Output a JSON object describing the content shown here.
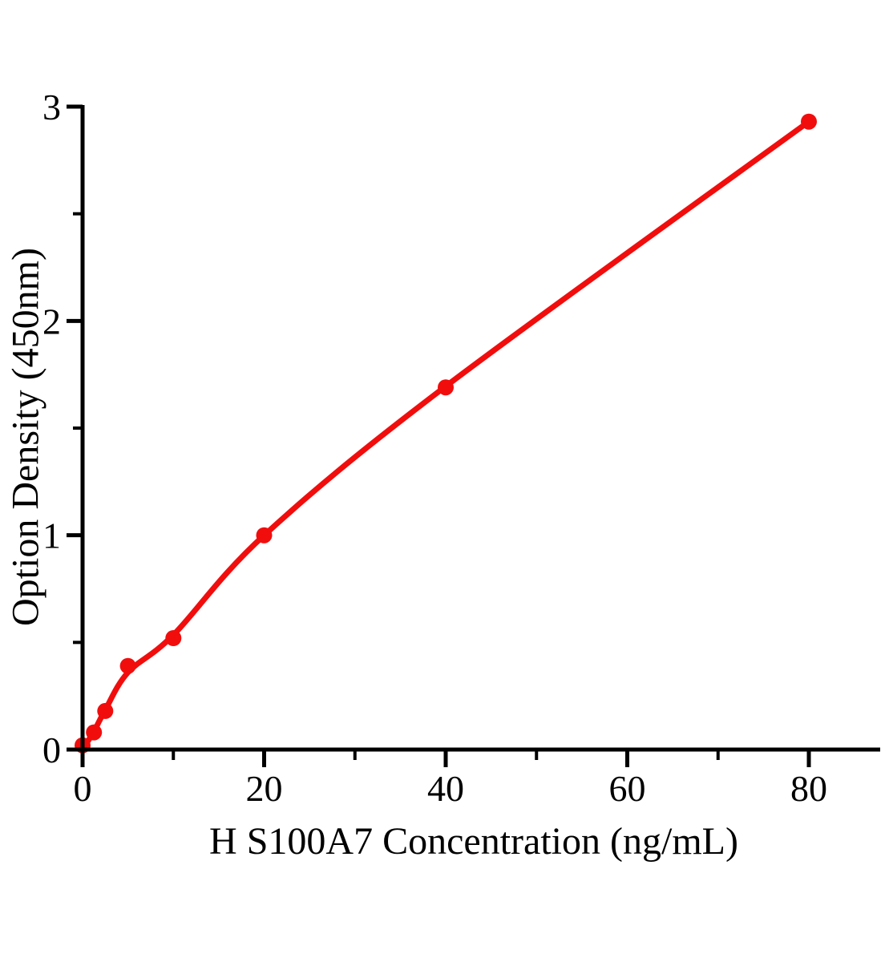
{
  "figure": {
    "background_color": "#ffffff",
    "axis_color": "#000000",
    "text_color": "#000000"
  },
  "chart_data": {
    "type": "scatter",
    "title": "",
    "xlabel": "H S100A7 Concentration (ng/mL)",
    "ylabel": "Option Density (450nm)",
    "x": [
      0,
      1.25,
      2.5,
      5,
      10,
      20,
      40,
      80
    ],
    "y": [
      0.02,
      0.08,
      0.18,
      0.39,
      0.52,
      1.0,
      1.69,
      2.93
    ],
    "fit_curve": [
      [
        0,
        0
      ],
      [
        1.25,
        0.085
      ],
      [
        2.5,
        0.185
      ],
      [
        5,
        0.36
      ],
      [
        10,
        0.535
      ],
      [
        20,
        1.0
      ],
      [
        40,
        1.695
      ],
      [
        80,
        2.93
      ]
    ],
    "x_axis": {
      "label": "H S100A7 Concentration (ng/mL)",
      "range": [
        0,
        88
      ],
      "major_ticks": [
        0,
        20,
        40,
        60,
        80
      ],
      "minor_ticks": [
        10,
        30,
        50,
        70
      ]
    },
    "y_axis": {
      "label": "Option Density (450nm)",
      "range": [
        0,
        3
      ],
      "major_ticks": [
        0,
        1,
        2,
        3
      ],
      "minor_ticks": [
        0.5,
        1.5,
        2.5
      ]
    },
    "line_color": "#f20d0d",
    "point_color": "#f20d0d",
    "point_radius": 10,
    "grid": false,
    "legend": null
  }
}
